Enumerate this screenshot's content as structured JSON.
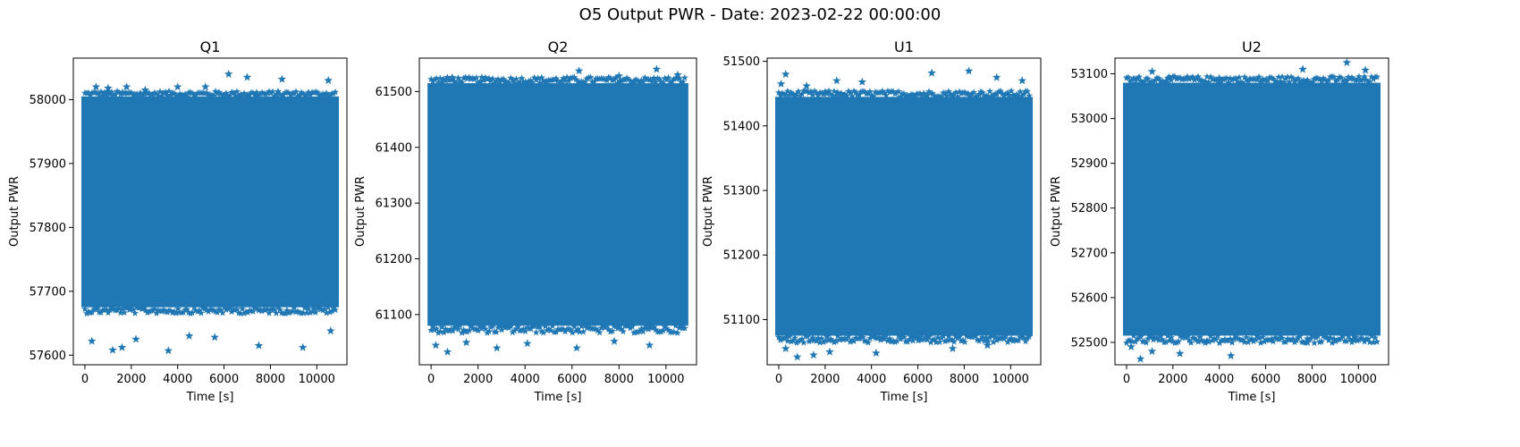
{
  "figure": {
    "suptitle": "O5 Output PWR - Date: 2023-02-22 00:00:00",
    "marker": "star",
    "marker_color": "#1f77b4"
  },
  "chart_data": [
    {
      "type": "scatter",
      "title": "Q1",
      "xlabel": "Time [s]",
      "ylabel": "Output PWR",
      "xlim": [
        -500,
        11300
      ],
      "ylim": [
        57585,
        58065
      ],
      "xticks": [
        0,
        2000,
        4000,
        6000,
        8000,
        10000
      ],
      "yticks": [
        57600,
        57700,
        57800,
        57900,
        58000
      ],
      "x_range": [
        0,
        10800
      ],
      "band": [
        57675,
        58005
      ],
      "extremes": [
        [
          480,
          58020
        ],
        [
          1000,
          58018
        ],
        [
          1800,
          58020
        ],
        [
          2600,
          58015
        ],
        [
          4000,
          58020
        ],
        [
          5200,
          58020
        ],
        [
          6200,
          58040
        ],
        [
          7000,
          58035
        ],
        [
          8500,
          58032
        ],
        [
          10500,
          58030
        ],
        [
          300,
          57622
        ],
        [
          1200,
          57608
        ],
        [
          1600,
          57612
        ],
        [
          2200,
          57625
        ],
        [
          3600,
          57607
        ],
        [
          4500,
          57630
        ],
        [
          5600,
          57628
        ],
        [
          7500,
          57615
        ],
        [
          9400,
          57612
        ],
        [
          10600,
          57638
        ]
      ]
    },
    {
      "type": "scatter",
      "title": "Q2",
      "xlabel": "Time [s]",
      "ylabel": "Output PWR",
      "xlim": [
        -500,
        11300
      ],
      "ylim": [
        61010,
        61560
      ],
      "xticks": [
        0,
        2000,
        4000,
        6000,
        8000,
        10000
      ],
      "yticks": [
        61100,
        61200,
        61300,
        61400,
        61500
      ],
      "x_range": [
        0,
        10800
      ],
      "band": [
        61080,
        61515
      ],
      "extremes": [
        [
          300,
          61512
        ],
        [
          900,
          61525
        ],
        [
          2100,
          61518
        ],
        [
          3200,
          61515
        ],
        [
          6300,
          61537
        ],
        [
          8000,
          61528
        ],
        [
          9600,
          61540
        ],
        [
          10500,
          61530
        ],
        [
          200,
          61045
        ],
        [
          700,
          61033
        ],
        [
          1500,
          61050
        ],
        [
          2800,
          61040
        ],
        [
          4100,
          61048
        ],
        [
          6200,
          61040
        ],
        [
          7800,
          61052
        ],
        [
          9300,
          61045
        ]
      ]
    },
    {
      "type": "scatter",
      "title": "U1",
      "xlabel": "Time [s]",
      "ylabel": "Output PWR",
      "xlim": [
        -500,
        11300
      ],
      "ylim": [
        51030,
        51505
      ],
      "xticks": [
        0,
        2000,
        4000,
        6000,
        8000,
        10000
      ],
      "yticks": [
        51100,
        51200,
        51300,
        51400,
        51500
      ],
      "x_range": [
        0,
        10800
      ],
      "band": [
        51075,
        51445
      ],
      "extremes": [
        [
          100,
          51465
        ],
        [
          300,
          51480
        ],
        [
          1200,
          51462
        ],
        [
          2500,
          51470
        ],
        [
          3600,
          51468
        ],
        [
          6600,
          51482
        ],
        [
          8200,
          51485
        ],
        [
          9400,
          51475
        ],
        [
          10500,
          51470
        ],
        [
          300,
          51055
        ],
        [
          800,
          51042
        ],
        [
          1500,
          51045
        ],
        [
          2200,
          51050
        ],
        [
          4200,
          51048
        ],
        [
          7500,
          51055
        ],
        [
          9000,
          51060
        ]
      ]
    },
    {
      "type": "scatter",
      "title": "U2",
      "xlabel": "Time [s]",
      "ylabel": "Output PWR",
      "xlim": [
        -500,
        11300
      ],
      "ylim": [
        52450,
        53135
      ],
      "xticks": [
        0,
        2000,
        4000,
        6000,
        8000,
        10000
      ],
      "yticks": [
        52500,
        52600,
        52700,
        52800,
        52900,
        53000,
        53100
      ],
      "x_range": [
        0,
        10800
      ],
      "band": [
        52515,
        53080
      ],
      "extremes": [
        [
          400,
          53078
        ],
        [
          1100,
          53105
        ],
        [
          1800,
          53090
        ],
        [
          4000,
          53090
        ],
        [
          7600,
          53110
        ],
        [
          9500,
          53125
        ],
        [
          10300,
          53108
        ],
        [
          200,
          52490
        ],
        [
          600,
          52463
        ],
        [
          1100,
          52480
        ],
        [
          2300,
          52475
        ],
        [
          4500,
          52470
        ],
        [
          7800,
          52500
        ],
        [
          9800,
          52505
        ]
      ]
    }
  ]
}
